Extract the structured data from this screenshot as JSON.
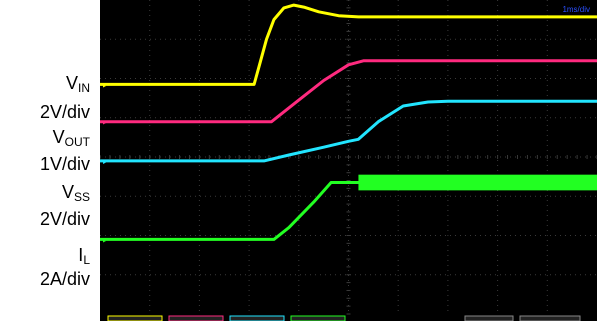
{
  "labels": [
    {
      "main": "V",
      "sub": "IN"
    },
    {
      "main": "2V/div",
      "sub": ""
    },
    {
      "main": "V",
      "sub": "OUT"
    },
    {
      "main": "1V/div",
      "sub": ""
    },
    {
      "main": "V",
      "sub": "SS"
    },
    {
      "main": "2V/div",
      "sub": ""
    },
    {
      "main": "I",
      "sub": "L"
    },
    {
      "main": "2A/div",
      "sub": ""
    }
  ],
  "timebase_text": "1ms/div",
  "colors": {
    "background": "#000000",
    "grid": "#3a3a3a",
    "vin": "#ffff00",
    "vout": "#ff2a7f",
    "vss": "#22e5ff",
    "il": "#22ff22"
  },
  "chart_data": {
    "type": "line",
    "title": "",
    "xlabel": "",
    "ylabel": "",
    "xlim": [
      0,
      10
    ],
    "ylim": [
      0,
      8
    ],
    "grid": true,
    "series": [
      {
        "name": "VIN",
        "color": "#ffff00",
        "x": [
          0,
          3.1,
          3.2,
          3.35,
          3.5,
          3.7,
          3.9,
          4.1,
          4.4,
          4.8,
          5.2,
          10
        ],
        "y": [
          5.85,
          5.85,
          6.3,
          7.0,
          7.5,
          7.8,
          7.87,
          7.82,
          7.7,
          7.6,
          7.57,
          7.57
        ]
      },
      {
        "name": "VOUT",
        "color": "#ff2a7f",
        "x": [
          0,
          3.45,
          4.0,
          4.5,
          5.0,
          5.3,
          5.6,
          10
        ],
        "y": [
          4.9,
          4.9,
          5.45,
          5.95,
          6.35,
          6.45,
          6.45,
          6.45
        ]
      },
      {
        "name": "VSS",
        "color": "#22e5ff",
        "x": [
          0,
          3.3,
          3.8,
          4.5,
          5.0,
          5.2,
          5.6,
          6.1,
          6.6,
          7.0,
          10
        ],
        "y": [
          3.9,
          3.9,
          4.05,
          4.25,
          4.4,
          4.45,
          4.9,
          5.3,
          5.4,
          5.42,
          5.42
        ]
      },
      {
        "name": "IL",
        "color": "#22ff22",
        "x": [
          0,
          3.5,
          3.8,
          4.3,
          4.65,
          5.2,
          10
        ],
        "y": [
          1.9,
          1.9,
          2.2,
          2.85,
          3.35,
          3.35,
          3.35
        ],
        "ripple": 0.4
      }
    ]
  }
}
